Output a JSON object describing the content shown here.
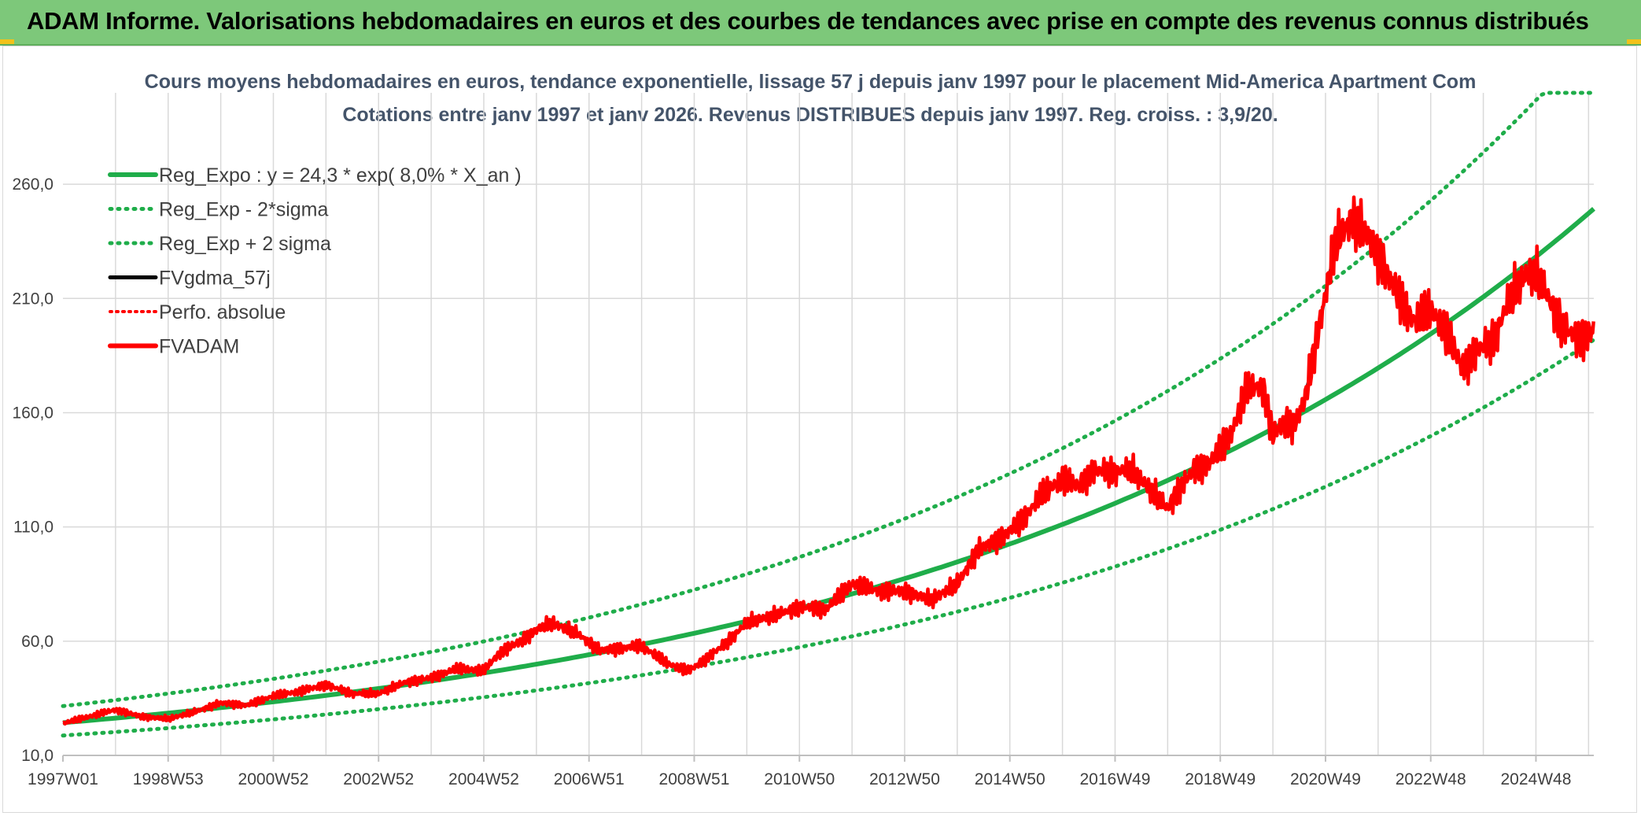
{
  "header": {
    "title": "ADAM Informe. Valorisations hebdomadaires en euros et des courbes de tendances avec prise en compte des revenus connus distribués"
  },
  "colors": {
    "reg": "#1fad4a",
    "black": "#000000",
    "red": "#ff0000",
    "grid": "#d9d9d9"
  },
  "chart_data": {
    "type": "line",
    "title_line1": "Cours moyens hebdomadaires en euros, tendance exponentielle, lissage 57 j depuis janv 1997 pour le placement Mid-America Apartment Com",
    "title_line2": "Cotations entre janv 1997 et janv 2026. Revenus DISTRIBUES depuis janv 1997. Reg. croiss. : 3,9/20.",
    "x_ticks": [
      "1997W01",
      "1998W53",
      "2000W52",
      "2002W52",
      "2004W52",
      "2006W51",
      "2008W51",
      "2010W50",
      "2012W50",
      "2014W50",
      "2016W49",
      "2018W49",
      "2020W49",
      "2022W48",
      "2024W48"
    ],
    "x_tick_years": [
      1997,
      1999,
      2001,
      2003,
      2005,
      2007,
      2009,
      2011,
      2013,
      2015,
      2017,
      2019,
      2021,
      2023,
      2025
    ],
    "x_range": [
      1997,
      2026.1
    ],
    "y_ticks": [
      "10,0",
      "60,0",
      "110,0",
      "160,0",
      "210,0",
      "260,0"
    ],
    "y_tick_values": [
      10,
      60,
      110,
      160,
      210,
      260
    ],
    "ylim": [
      10,
      300
    ],
    "legend": [
      {
        "label": "Reg_Expo : y = 24,3 * exp( 8,0% *  X_an )",
        "style": "solid-green"
      },
      {
        "label": "Reg_Exp - 2*sigma",
        "style": "dotted-green"
      },
      {
        "label": "Reg_Exp + 2 sigma",
        "style": "dotted-green"
      },
      {
        "label": "FVgdma_57j",
        "style": "solid-black"
      },
      {
        "label": "Perfo. absolue",
        "style": "dotted-red"
      },
      {
        "label": "FVADAM",
        "style": "solid-red"
      }
    ],
    "regression": {
      "a": 24.3,
      "rate": 0.08,
      "start_year": 1997,
      "sigma_low_factor": 0.77,
      "sigma_high_factor": 1.3
    },
    "fvadam_series": {
      "x": [
        1997.0,
        1997.5,
        1998.0,
        1998.5,
        1999.0,
        1999.5,
        2000.0,
        2000.5,
        2001.0,
        2001.5,
        2002.0,
        2002.5,
        2003.0,
        2003.5,
        2004.0,
        2004.5,
        2005.0,
        2005.3,
        2005.7,
        2006.0,
        2006.3,
        2006.8,
        2007.2,
        2007.6,
        2008.0,
        2008.5,
        2008.9,
        2009.2,
        2009.6,
        2010.0,
        2010.5,
        2011.0,
        2011.5,
        2012.0,
        2012.5,
        2013.0,
        2013.5,
        2014.0,
        2014.4,
        2014.8,
        2015.2,
        2015.6,
        2016.0,
        2016.3,
        2016.6,
        2017.0,
        2017.3,
        2017.6,
        2018.0,
        2018.2,
        2018.5,
        2018.8,
        2019.2,
        2019.5,
        2019.8,
        2020.0,
        2020.2,
        2020.4,
        2020.6,
        2020.9,
        2021.2,
        2021.5,
        2021.8,
        2022.1,
        2022.4,
        2022.7,
        2023.0,
        2023.3,
        2023.6,
        2023.9,
        2024.2,
        2024.5,
        2024.8,
        2025.0,
        2025.2,
        2025.5,
        2025.8,
        2026.1
      ],
      "y": [
        24,
        27,
        30,
        27,
        26,
        29,
        33,
        32,
        36,
        38,
        41,
        37,
        37,
        42,
        44,
        48,
        47,
        55,
        60,
        65,
        68,
        63,
        56,
        57,
        58,
        50,
        47,
        52,
        59,
        68,
        71,
        75,
        74,
        85,
        82,
        82,
        78,
        85,
        100,
        105,
        112,
        124,
        131,
        128,
        135,
        134,
        135,
        128,
        118,
        126,
        135,
        138,
        150,
        170,
        172,
        150,
        156,
        155,
        165,
        200,
        235,
        245,
        238,
        225,
        210,
        200,
        205,
        195,
        180,
        188,
        192,
        210,
        220,
        221,
        212,
        198,
        192,
        196
      ]
    }
  }
}
